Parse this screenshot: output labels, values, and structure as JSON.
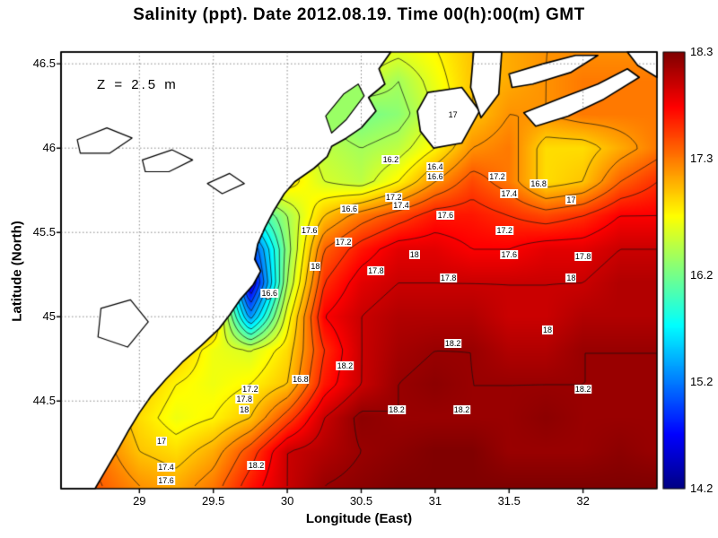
{
  "title": "Salinity (ppt). Date 2012.08.19. Time 00(h):00(m) GMT",
  "annotation": "Z = 2.5 m",
  "axes": {
    "xlabel": "Longitude (East)",
    "ylabel": "Latitude (North)",
    "x_ticks": [
      29,
      29.5,
      30,
      30.5,
      31,
      31.5,
      32
    ],
    "x_tick_labels": [
      "29",
      "29.5",
      "30",
      "30.5",
      "31",
      "31.5",
      "32"
    ],
    "y_ticks": [
      44.5,
      45,
      45.5,
      46,
      46.5
    ],
    "y_tick_labels": [
      "44.5",
      "45",
      "45.5",
      "46",
      "46.5"
    ],
    "x_range": [
      28.47,
      32.5
    ],
    "y_range": [
      43.98,
      46.57
    ]
  },
  "colorbar": {
    "min": 14.2,
    "max": 18.3,
    "tick_values": [
      18.3,
      17.3,
      16.2,
      15.2,
      14.2
    ],
    "tick_labels": [
      "18.3",
      "17.3",
      "16.2",
      "15.2",
      "14.2"
    ]
  },
  "chart_data": {
    "type": "filled_contour",
    "variable": "Salinity",
    "units": "ppt",
    "depth_annotation": "Z = 2.5 m",
    "contour_interval": 0.2,
    "contour_levels": [
      14.6,
      14.8,
      15.0,
      15.2,
      15.4,
      15.6,
      15.8,
      16.0,
      16.2,
      16.4,
      16.6,
      16.8,
      17.0,
      17.2,
      17.4,
      17.6,
      17.8,
      18.0,
      18.2
    ],
    "colormap": {
      "stops": [
        [
          0.0,
          [
            0,
            0,
            131
          ]
        ],
        [
          0.125,
          [
            0,
            0,
            255
          ]
        ],
        [
          0.375,
          [
            0,
            255,
            255
          ]
        ],
        [
          0.625,
          [
            255,
            255,
            0
          ]
        ],
        [
          0.875,
          [
            255,
            0,
            0
          ]
        ],
        [
          1.0,
          [
            128,
            0,
            0
          ]
        ]
      ]
    },
    "grid": {
      "lon": [
        28.5,
        28.75,
        29.0,
        29.25,
        29.5,
        29.75,
        30.0,
        30.25,
        30.5,
        30.75,
        31.0,
        31.25,
        31.5,
        31.75,
        32.0,
        32.25,
        32.5
      ],
      "lat": [
        46.6,
        46.4,
        46.2,
        46.0,
        45.8,
        45.6,
        45.4,
        45.2,
        45.0,
        44.8,
        44.6,
        44.4,
        44.2,
        44.0
      ],
      "values": [
        [
          16.6,
          16.6,
          16.6,
          16.6,
          16.6,
          16.6,
          16.7,
          16.8,
          16.8,
          16.7,
          16.8,
          17.0,
          17.1,
          17.2,
          17.2,
          17.2,
          17.2
        ],
        [
          16.6,
          16.6,
          16.6,
          16.6,
          16.6,
          16.6,
          16.7,
          16.6,
          16.6,
          16.4,
          16.7,
          17.0,
          17.1,
          17.2,
          17.3,
          17.3,
          17.3
        ],
        [
          16.5,
          16.5,
          16.5,
          16.5,
          16.6,
          16.6,
          16.7,
          16.4,
          16.2,
          16.3,
          16.6,
          17.0,
          17.2,
          17.2,
          17.3,
          17.3,
          17.3
        ],
        [
          16.5,
          16.5,
          16.5,
          16.6,
          16.7,
          16.8,
          16.8,
          16.5,
          16.4,
          16.5,
          16.8,
          17.2,
          17.3,
          16.9,
          16.9,
          17.1,
          17.3
        ],
        [
          16.6,
          16.6,
          16.7,
          16.8,
          17.0,
          17.0,
          16.9,
          16.6,
          16.5,
          16.8,
          17.2,
          17.5,
          17.3,
          16.9,
          17.0,
          17.4,
          17.6
        ],
        [
          16.7,
          16.8,
          17.0,
          17.2,
          17.0,
          15.8,
          16.4,
          17.0,
          17.3,
          17.5,
          17.7,
          17.7,
          17.6,
          17.5,
          17.6,
          17.8,
          17.8
        ],
        [
          16.9,
          17.1,
          17.2,
          17.4,
          16.9,
          14.9,
          16.3,
          17.4,
          17.7,
          17.9,
          17.9,
          17.8,
          17.8,
          17.9,
          17.9,
          18.0,
          18.0
        ],
        [
          17.1,
          17.2,
          17.4,
          17.5,
          17.0,
          14.5,
          16.4,
          17.6,
          17.9,
          18.0,
          18.0,
          18.0,
          18.0,
          18.0,
          18.0,
          18.1,
          18.1
        ],
        [
          17.2,
          17.4,
          17.5,
          17.6,
          17.1,
          15.3,
          16.7,
          17.8,
          18.0,
          18.1,
          18.1,
          18.1,
          18.0,
          18.0,
          18.1,
          18.1,
          18.1
        ],
        [
          17.3,
          17.3,
          17.2,
          17.0,
          16.7,
          16.6,
          16.9,
          17.6,
          18.0,
          18.15,
          18.2,
          18.2,
          18.1,
          18.1,
          18.2,
          18.2,
          18.2
        ],
        [
          17.3,
          17.2,
          17.0,
          16.8,
          16.7,
          16.8,
          17.0,
          17.7,
          18.0,
          18.2,
          18.25,
          18.2,
          18.2,
          18.2,
          18.2,
          18.2,
          18.2
        ],
        [
          17.4,
          17.2,
          16.9,
          16.7,
          16.8,
          17.0,
          17.5,
          18.0,
          18.25,
          18.2,
          18.2,
          18.2,
          18.2,
          18.25,
          18.2,
          18.2,
          18.2
        ],
        [
          17.5,
          17.3,
          17.0,
          16.9,
          17.1,
          17.5,
          18.0,
          18.1,
          18.2,
          18.25,
          18.3,
          18.3,
          18.2,
          18.2,
          18.2,
          18.25,
          18.2
        ],
        [
          17.6,
          17.4,
          17.2,
          17.1,
          17.3,
          17.7,
          18.0,
          18.2,
          18.25,
          18.3,
          18.3,
          18.3,
          18.3,
          18.3,
          18.3,
          18.3,
          18.3
        ]
      ]
    },
    "contour_labels": [
      {
        "v": "17",
        "lon": 31.12,
        "lat": 46.2
      },
      {
        "v": "16.2",
        "lon": 30.7,
        "lat": 45.93
      },
      {
        "v": "16.4",
        "lon": 31.0,
        "lat": 45.89
      },
      {
        "v": "16.6",
        "lon": 31.0,
        "lat": 45.83
      },
      {
        "v": "17.2",
        "lon": 31.42,
        "lat": 45.83
      },
      {
        "v": "16.8",
        "lon": 31.7,
        "lat": 45.79
      },
      {
        "v": "17.4",
        "lon": 31.5,
        "lat": 45.73
      },
      {
        "v": "17",
        "lon": 31.92,
        "lat": 45.69
      },
      {
        "v": "17.2",
        "lon": 30.72,
        "lat": 45.71
      },
      {
        "v": "17.4",
        "lon": 30.77,
        "lat": 45.66
      },
      {
        "v": "16.6",
        "lon": 30.42,
        "lat": 45.64
      },
      {
        "v": "17.6",
        "lon": 31.07,
        "lat": 45.6
      },
      {
        "v": "17.2",
        "lon": 31.47,
        "lat": 45.51
      },
      {
        "v": "17.6",
        "lon": 30.15,
        "lat": 45.51
      },
      {
        "v": "17.2",
        "lon": 30.38,
        "lat": 45.44
      },
      {
        "v": "18",
        "lon": 30.86,
        "lat": 45.37
      },
      {
        "v": "17.6",
        "lon": 31.5,
        "lat": 45.37
      },
      {
        "v": "17.8",
        "lon": 32.0,
        "lat": 45.36
      },
      {
        "v": "18",
        "lon": 30.19,
        "lat": 45.3
      },
      {
        "v": "17.8",
        "lon": 30.6,
        "lat": 45.27
      },
      {
        "v": "17.8",
        "lon": 31.09,
        "lat": 45.23
      },
      {
        "v": "18",
        "lon": 31.92,
        "lat": 45.23
      },
      {
        "v": "16.6",
        "lon": 29.88,
        "lat": 45.14
      },
      {
        "v": "18",
        "lon": 31.76,
        "lat": 44.92
      },
      {
        "v": "18.2",
        "lon": 31.12,
        "lat": 44.84
      },
      {
        "v": "18.2",
        "lon": 30.39,
        "lat": 44.71
      },
      {
        "v": "16.8",
        "lon": 30.09,
        "lat": 44.63
      },
      {
        "v": "17.2",
        "lon": 29.75,
        "lat": 44.57
      },
      {
        "v": "18.2",
        "lon": 32.0,
        "lat": 44.57
      },
      {
        "v": "17.8",
        "lon": 29.71,
        "lat": 44.51
      },
      {
        "v": "18",
        "lon": 29.71,
        "lat": 44.45
      },
      {
        "v": "18.2",
        "lon": 30.74,
        "lat": 44.45
      },
      {
        "v": "18.2",
        "lon": 31.18,
        "lat": 44.45
      },
      {
        "v": "17",
        "lon": 29.15,
        "lat": 44.26
      },
      {
        "v": "18.2",
        "lon": 29.79,
        "lat": 44.12
      },
      {
        "v": "17.4",
        "lon": 29.18,
        "lat": 44.11
      },
      {
        "v": "17.6",
        "lon": 29.18,
        "lat": 44.03
      }
    ],
    "land": [
      [
        [
          28.47,
          46.57
        ],
        [
          30.7,
          46.57
        ],
        [
          30.62,
          46.47
        ],
        [
          30.66,
          46.38
        ],
        [
          30.55,
          46.3
        ],
        [
          30.6,
          46.22
        ],
        [
          30.5,
          46.12
        ],
        [
          30.4,
          46.06
        ],
        [
          30.3,
          46.01
        ],
        [
          30.27,
          45.95
        ],
        [
          30.18,
          45.88
        ],
        [
          30.05,
          45.8
        ],
        [
          29.98,
          45.73
        ],
        [
          29.91,
          45.63
        ],
        [
          29.85,
          45.53
        ],
        [
          29.8,
          45.43
        ],
        [
          29.78,
          45.34
        ],
        [
          29.82,
          45.27
        ],
        [
          29.77,
          45.19
        ],
        [
          29.68,
          45.1
        ],
        [
          29.61,
          45.01
        ],
        [
          29.54,
          44.93
        ],
        [
          29.42,
          44.83
        ],
        [
          29.29,
          44.73
        ],
        [
          29.18,
          44.63
        ],
        [
          29.08,
          44.53
        ],
        [
          29.0,
          44.43
        ],
        [
          28.93,
          44.33
        ],
        [
          28.86,
          44.22
        ],
        [
          28.78,
          44.1
        ],
        [
          28.7,
          43.98
        ],
        [
          28.47,
          43.98
        ]
      ],
      [
        [
          30.95,
          46.33
        ],
        [
          31.18,
          46.36
        ],
        [
          31.3,
          46.22
        ],
        [
          31.18,
          46.03
        ],
        [
          30.99,
          46.0
        ],
        [
          30.9,
          46.1
        ],
        [
          30.88,
          46.22
        ]
      ],
      [
        [
          31.26,
          46.57
        ],
        [
          31.45,
          46.57
        ],
        [
          31.43,
          46.32
        ],
        [
          31.31,
          46.18
        ],
        [
          31.24,
          46.36
        ]
      ],
      [
        [
          31.5,
          46.44
        ],
        [
          31.73,
          46.5
        ],
        [
          31.95,
          46.55
        ],
        [
          32.1,
          46.55
        ],
        [
          31.92,
          46.45
        ],
        [
          31.66,
          46.38
        ],
        [
          31.52,
          46.36
        ]
      ],
      [
        [
          31.6,
          46.21
        ],
        [
          31.86,
          46.3
        ],
        [
          32.1,
          46.38
        ],
        [
          32.3,
          46.47
        ],
        [
          32.38,
          46.42
        ],
        [
          32.14,
          46.29
        ],
        [
          31.9,
          46.19
        ],
        [
          31.68,
          46.13
        ]
      ],
      [
        [
          32.3,
          46.57
        ],
        [
          32.5,
          46.57
        ],
        [
          32.5,
          46.42
        ],
        [
          32.37,
          46.49
        ]
      ]
    ],
    "lakes": [
      {
        "type": "liman",
        "poly": [
          [
            30.26,
            46.19
          ],
          [
            30.38,
            46.32
          ],
          [
            30.48,
            46.38
          ],
          [
            30.52,
            46.31
          ],
          [
            30.4,
            46.17
          ],
          [
            30.3,
            46.09
          ]
        ]
      },
      {
        "type": "lake",
        "poly": [
          [
            28.58,
            46.05
          ],
          [
            28.78,
            46.12
          ],
          [
            28.95,
            46.06
          ],
          [
            28.8,
            45.97
          ],
          [
            28.6,
            45.97
          ]
        ]
      },
      {
        "type": "lake",
        "poly": [
          [
            29.02,
            45.93
          ],
          [
            29.22,
            45.99
          ],
          [
            29.36,
            45.93
          ],
          [
            29.2,
            45.86
          ],
          [
            29.04,
            45.86
          ]
        ]
      },
      {
        "type": "lake",
        "poly": [
          [
            29.46,
            45.79
          ],
          [
            29.61,
            45.85
          ],
          [
            29.71,
            45.79
          ],
          [
            29.56,
            45.73
          ]
        ]
      },
      {
        "type": "lake",
        "poly": [
          [
            28.74,
            45.05
          ],
          [
            28.94,
            45.1
          ],
          [
            29.06,
            44.97
          ],
          [
            28.92,
            44.82
          ],
          [
            28.72,
            44.88
          ]
        ]
      }
    ],
    "marker": {
      "lon": 29.87,
      "lat": 45.12
    }
  }
}
